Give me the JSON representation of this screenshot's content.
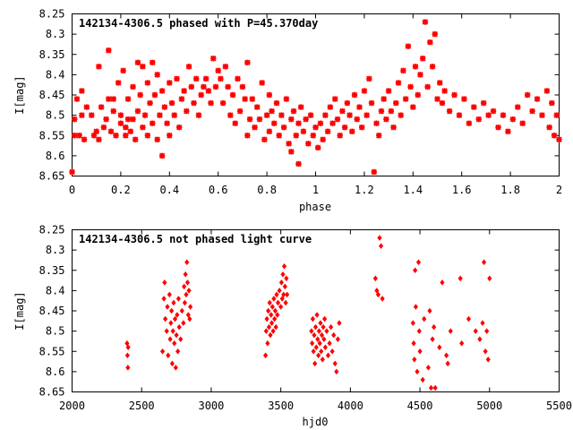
{
  "chart_data": [
    {
      "type": "scatter",
      "title": "142134-4306.5 phased with P=45.370day",
      "xlabel": "phase",
      "ylabel": "I[mag]",
      "xlim": [
        0,
        2
      ],
      "ylim": [
        8.65,
        8.25
      ],
      "y_inverted": true,
      "xticks": [
        "0",
        "0.2",
        "0.4",
        "0.6",
        "0.8",
        "1",
        "1.2",
        "1.4",
        "1.6",
        "1.8",
        "2"
      ],
      "yticks": [
        "8.25",
        "8.3",
        "8.35",
        "8.4",
        "8.45",
        "8.5",
        "8.55",
        "8.6",
        "8.65"
      ],
      "marker": "star",
      "color": "#ff0000",
      "points": [
        [
          0.0,
          8.64
        ],
        [
          0.01,
          8.51
        ],
        [
          0.01,
          8.55
        ],
        [
          0.02,
          8.46
        ],
        [
          0.03,
          8.55
        ],
        [
          0.04,
          8.5
        ],
        [
          0.04,
          8.44
        ],
        [
          0.05,
          8.56
        ],
        [
          0.06,
          8.48
        ],
        [
          0.08,
          8.5
        ],
        [
          0.09,
          8.55
        ],
        [
          0.1,
          8.54
        ],
        [
          0.11,
          8.38
        ],
        [
          0.11,
          8.56
        ],
        [
          0.12,
          8.48
        ],
        [
          0.13,
          8.53
        ],
        [
          0.14,
          8.51
        ],
        [
          0.15,
          8.34
        ],
        [
          0.15,
          8.46
        ],
        [
          0.16,
          8.54
        ],
        [
          0.17,
          8.49
        ],
        [
          0.17,
          8.46
        ],
        [
          0.18,
          8.55
        ],
        [
          0.19,
          8.42
        ],
        [
          0.2,
          8.52
        ],
        [
          0.2,
          8.5
        ],
        [
          0.21,
          8.39
        ],
        [
          0.22,
          8.53
        ],
        [
          0.22,
          8.55
        ],
        [
          0.23,
          8.51
        ],
        [
          0.23,
          8.46
        ],
        [
          0.24,
          8.54
        ],
        [
          0.25,
          8.43
        ],
        [
          0.25,
          8.51
        ],
        [
          0.26,
          8.56
        ],
        [
          0.27,
          8.37
        ],
        [
          0.27,
          8.49
        ],
        [
          0.28,
          8.45
        ],
        [
          0.29,
          8.53
        ],
        [
          0.29,
          8.38
        ],
        [
          0.3,
          8.5
        ],
        [
          0.31,
          8.55
        ],
        [
          0.31,
          8.42
        ],
        [
          0.32,
          8.47
        ],
        [
          0.33,
          8.37
        ],
        [
          0.33,
          8.52
        ],
        [
          0.34,
          8.45
        ],
        [
          0.35,
          8.56
        ],
        [
          0.35,
          8.4
        ],
        [
          0.36,
          8.5
        ],
        [
          0.37,
          8.44
        ],
        [
          0.37,
          8.6
        ],
        [
          0.38,
          8.48
        ],
        [
          0.39,
          8.52
        ],
        [
          0.4,
          8.42
        ],
        [
          0.4,
          8.55
        ],
        [
          0.41,
          8.47
        ],
        [
          0.42,
          8.5
        ],
        [
          0.43,
          8.41
        ],
        [
          0.44,
          8.53
        ],
        [
          0.45,
          8.46
        ],
        [
          0.46,
          8.44
        ],
        [
          0.47,
          8.49
        ],
        [
          0.48,
          8.38
        ],
        [
          0.49,
          8.43
        ],
        [
          0.5,
          8.47
        ],
        [
          0.51,
          8.41
        ],
        [
          0.52,
          8.5
        ],
        [
          0.53,
          8.45
        ],
        [
          0.54,
          8.43
        ],
        [
          0.55,
          8.41
        ],
        [
          0.56,
          8.44
        ],
        [
          0.57,
          8.47
        ],
        [
          0.58,
          8.36
        ],
        [
          0.59,
          8.43
        ],
        [
          0.6,
          8.39
        ],
        [
          0.61,
          8.41
        ],
        [
          0.62,
          8.47
        ],
        [
          0.63,
          8.38
        ],
        [
          0.64,
          8.43
        ],
        [
          0.65,
          8.5
        ],
        [
          0.66,
          8.45
        ],
        [
          0.67,
          8.52
        ],
        [
          0.68,
          8.41
        ],
        [
          0.69,
          8.49
        ],
        [
          0.7,
          8.43
        ],
        [
          0.71,
          8.46
        ],
        [
          0.72,
          8.55
        ],
        [
          0.72,
          8.37
        ],
        [
          0.73,
          8.51
        ],
        [
          0.74,
          8.46
        ],
        [
          0.75,
          8.53
        ],
        [
          0.76,
          8.48
        ],
        [
          0.77,
          8.51
        ],
        [
          0.78,
          8.42
        ],
        [
          0.79,
          8.56
        ],
        [
          0.8,
          8.5
        ],
        [
          0.81,
          8.54
        ],
        [
          0.81,
          8.45
        ],
        [
          0.82,
          8.49
        ],
        [
          0.83,
          8.52
        ],
        [
          0.84,
          8.47
        ],
        [
          0.85,
          8.55
        ],
        [
          0.86,
          8.5
        ],
        [
          0.87,
          8.53
        ],
        [
          0.88,
          8.46
        ],
        [
          0.89,
          8.57
        ],
        [
          0.9,
          8.51
        ],
        [
          0.9,
          8.59
        ],
        [
          0.91,
          8.49
        ],
        [
          0.92,
          8.55
        ],
        [
          0.93,
          8.62
        ],
        [
          0.93,
          8.52
        ],
        [
          0.94,
          8.48
        ],
        [
          0.95,
          8.54
        ],
        [
          0.96,
          8.51
        ],
        [
          0.97,
          8.57
        ],
        [
          0.98,
          8.5
        ],
        [
          0.99,
          8.55
        ],
        [
          1.0,
          8.53
        ],
        [
          1.01,
          8.58
        ],
        [
          1.02,
          8.52
        ],
        [
          1.03,
          8.56
        ],
        [
          1.04,
          8.5
        ],
        [
          1.05,
          8.54
        ],
        [
          1.06,
          8.48
        ],
        [
          1.07,
          8.52
        ],
        [
          1.08,
          8.46
        ],
        [
          1.09,
          8.51
        ],
        [
          1.1,
          8.55
        ],
        [
          1.11,
          8.49
        ],
        [
          1.12,
          8.53
        ],
        [
          1.13,
          8.47
        ],
        [
          1.14,
          8.5
        ],
        [
          1.15,
          8.54
        ],
        [
          1.16,
          8.45
        ],
        [
          1.17,
          8.51
        ],
        [
          1.18,
          8.48
        ],
        [
          1.19,
          8.53
        ],
        [
          1.2,
          8.44
        ],
        [
          1.21,
          8.5
        ],
        [
          1.22,
          8.41
        ],
        [
          1.23,
          8.47
        ],
        [
          1.24,
          8.64
        ],
        [
          1.25,
          8.52
        ],
        [
          1.26,
          8.55
        ],
        [
          1.27,
          8.49
        ],
        [
          1.28,
          8.46
        ],
        [
          1.29,
          8.51
        ],
        [
          1.3,
          8.44
        ],
        [
          1.31,
          8.49
        ],
        [
          1.32,
          8.53
        ],
        [
          1.33,
          8.47
        ],
        [
          1.34,
          8.42
        ],
        [
          1.35,
          8.5
        ],
        [
          1.36,
          8.39
        ],
        [
          1.37,
          8.46
        ],
        [
          1.38,
          8.33
        ],
        [
          1.39,
          8.43
        ],
        [
          1.4,
          8.48
        ],
        [
          1.41,
          8.38
        ],
        [
          1.42,
          8.45
        ],
        [
          1.43,
          8.4
        ],
        [
          1.44,
          8.36
        ],
        [
          1.45,
          8.27
        ],
        [
          1.46,
          8.43
        ],
        [
          1.47,
          8.32
        ],
        [
          1.48,
          8.38
        ],
        [
          1.49,
          8.3
        ],
        [
          1.5,
          8.46
        ],
        [
          1.51,
          8.42
        ],
        [
          1.52,
          8.47
        ],
        [
          1.53,
          8.44
        ],
        [
          1.55,
          8.49
        ],
        [
          1.57,
          8.45
        ],
        [
          1.59,
          8.5
        ],
        [
          1.61,
          8.46
        ],
        [
          1.63,
          8.52
        ],
        [
          1.65,
          8.48
        ],
        [
          1.67,
          8.51
        ],
        [
          1.69,
          8.47
        ],
        [
          1.71,
          8.5
        ],
        [
          1.73,
          8.49
        ],
        [
          1.75,
          8.53
        ],
        [
          1.77,
          8.5
        ],
        [
          1.79,
          8.54
        ],
        [
          1.81,
          8.51
        ],
        [
          1.83,
          8.48
        ],
        [
          1.85,
          8.52
        ],
        [
          1.87,
          8.45
        ],
        [
          1.89,
          8.49
        ],
        [
          1.91,
          8.46
        ],
        [
          1.93,
          8.5
        ],
        [
          1.95,
          8.44
        ],
        [
          1.96,
          8.53
        ],
        [
          1.97,
          8.47
        ],
        [
          1.98,
          8.55
        ],
        [
          1.99,
          8.5
        ],
        [
          2.0,
          8.56
        ]
      ]
    },
    {
      "type": "scatter",
      "title": "142134-4306.5 not phased light curve",
      "xlabel": "hjd0",
      "ylabel": "I[mag]",
      "xlim": [
        2000,
        5500
      ],
      "ylim": [
        8.65,
        8.25
      ],
      "y_inverted": true,
      "xticks": [
        "2000",
        "2500",
        "3000",
        "3500",
        "4000",
        "4500",
        "5000",
        "5500"
      ],
      "yticks": [
        "8.25",
        "8.3",
        "8.35",
        "8.4",
        "8.45",
        "8.5",
        "8.55",
        "8.6",
        "8.65"
      ],
      "marker": "diamond",
      "color": "#ff0000",
      "points": [
        [
          2395,
          8.53
        ],
        [
          2398,
          8.56
        ],
        [
          2401,
          8.59
        ],
        [
          2403,
          8.54
        ],
        [
          2650,
          8.55
        ],
        [
          2660,
          8.42
        ],
        [
          2665,
          8.38
        ],
        [
          2670,
          8.47
        ],
        [
          2680,
          8.5
        ],
        [
          2685,
          8.44
        ],
        [
          2690,
          8.56
        ],
        [
          2700,
          8.41
        ],
        [
          2705,
          8.52
        ],
        [
          2710,
          8.48
        ],
        [
          2715,
          8.45
        ],
        [
          2720,
          8.58
        ],
        [
          2725,
          8.5
        ],
        [
          2730,
          8.43
        ],
        [
          2735,
          8.53
        ],
        [
          2740,
          8.47
        ],
        [
          2745,
          8.59
        ],
        [
          2750,
          8.51
        ],
        [
          2755,
          8.46
        ],
        [
          2760,
          8.55
        ],
        [
          2765,
          8.42
        ],
        [
          2770,
          8.49
        ],
        [
          2780,
          8.52
        ],
        [
          2790,
          8.45
        ],
        [
          2800,
          8.48
        ],
        [
          2805,
          8.39
        ],
        [
          2810,
          8.43
        ],
        [
          2815,
          8.36
        ],
        [
          2820,
          8.41
        ],
        [
          2825,
          8.33
        ],
        [
          2830,
          8.38
        ],
        [
          2835,
          8.46
        ],
        [
          2840,
          8.4
        ],
        [
          2845,
          8.47
        ],
        [
          2850,
          8.44
        ],
        [
          3390,
          8.56
        ],
        [
          3395,
          8.5
        ],
        [
          3400,
          8.47
        ],
        [
          3405,
          8.53
        ],
        [
          3410,
          8.45
        ],
        [
          3415,
          8.49
        ],
        [
          3420,
          8.43
        ],
        [
          3425,
          8.51
        ],
        [
          3430,
          8.46
        ],
        [
          3435,
          8.48
        ],
        [
          3440,
          8.44
        ],
        [
          3445,
          8.5
        ],
        [
          3450,
          8.42
        ],
        [
          3455,
          8.47
        ],
        [
          3460,
          8.45
        ],
        [
          3465,
          8.49
        ],
        [
          3470,
          8.41
        ],
        [
          3475,
          8.46
        ],
        [
          3480,
          8.43
        ],
        [
          3490,
          8.4
        ],
        [
          3500,
          8.44
        ],
        [
          3505,
          8.38
        ],
        [
          3510,
          8.42
        ],
        [
          3515,
          8.36
        ],
        [
          3520,
          8.41
        ],
        [
          3525,
          8.34
        ],
        [
          3530,
          8.39
        ],
        [
          3535,
          8.43
        ],
        [
          3540,
          8.37
        ],
        [
          3545,
          8.41
        ],
        [
          3720,
          8.5
        ],
        [
          3725,
          8.53
        ],
        [
          3730,
          8.47
        ],
        [
          3735,
          8.55
        ],
        [
          3740,
          8.51
        ],
        [
          3745,
          8.58
        ],
        [
          3750,
          8.49
        ],
        [
          3755,
          8.54
        ],
        [
          3760,
          8.46
        ],
        [
          3765,
          8.52
        ],
        [
          3770,
          8.56
        ],
        [
          3775,
          8.5
        ],
        [
          3780,
          8.53
        ],
        [
          3785,
          8.48
        ],
        [
          3790,
          8.55
        ],
        [
          3795,
          8.51
        ],
        [
          3800,
          8.57
        ],
        [
          3805,
          8.49
        ],
        [
          3810,
          8.52
        ],
        [
          3815,
          8.47
        ],
        [
          3820,
          8.54
        ],
        [
          3830,
          8.5
        ],
        [
          3840,
          8.56
        ],
        [
          3850,
          8.53
        ],
        [
          3860,
          8.49
        ],
        [
          3870,
          8.55
        ],
        [
          3880,
          8.51
        ],
        [
          3890,
          8.58
        ],
        [
          3900,
          8.6
        ],
        [
          3910,
          8.52
        ],
        [
          3920,
          8.48
        ],
        [
          4180,
          8.37
        ],
        [
          4190,
          8.4
        ],
        [
          4200,
          8.41
        ],
        [
          4210,
          8.27
        ],
        [
          4220,
          8.29
        ],
        [
          4230,
          8.42
        ],
        [
          4450,
          8.48
        ],
        [
          4455,
          8.53
        ],
        [
          4460,
          8.57
        ],
        [
          4465,
          8.35
        ],
        [
          4470,
          8.44
        ],
        [
          4480,
          8.6
        ],
        [
          4490,
          8.33
        ],
        [
          4495,
          8.5
        ],
        [
          4500,
          8.55
        ],
        [
          4520,
          8.62
        ],
        [
          4530,
          8.47
        ],
        [
          4560,
          8.59
        ],
        [
          4570,
          8.45
        ],
        [
          4580,
          8.64
        ],
        [
          4590,
          8.52
        ],
        [
          4600,
          8.49
        ],
        [
          4610,
          8.64
        ],
        [
          4640,
          8.54
        ],
        [
          4660,
          8.38
        ],
        [
          4690,
          8.56
        ],
        [
          4700,
          8.58
        ],
        [
          4720,
          8.5
        ],
        [
          4790,
          8.37
        ],
        [
          4800,
          8.53
        ],
        [
          4850,
          8.47
        ],
        [
          4900,
          8.5
        ],
        [
          4930,
          8.52
        ],
        [
          4950,
          8.48
        ],
        [
          4960,
          8.33
        ],
        [
          4970,
          8.55
        ],
        [
          4980,
          8.5
        ],
        [
          4990,
          8.57
        ],
        [
          5000,
          8.37
        ]
      ]
    }
  ]
}
